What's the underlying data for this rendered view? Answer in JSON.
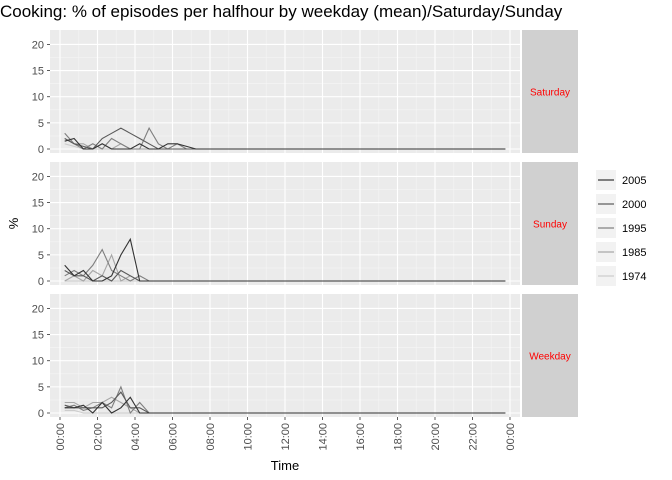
{
  "title": "Cooking: % of episodes per halfhour by weekday (mean)/Saturday/Sunday",
  "chart_data": {
    "type": "line",
    "title": "Cooking: % of episodes per halfhour by weekday (mean)/Saturday/Sunday",
    "xlabel": "Time",
    "ylabel": "%",
    "x_ticks": [
      "00:00",
      "02:00",
      "04:00",
      "06:00",
      "08:00",
      "10:00",
      "12:00",
      "14:00",
      "16:00",
      "18:00",
      "20:00",
      "22:00",
      "00:00"
    ],
    "y_ticks": [
      0,
      5,
      10,
      15,
      20
    ],
    "ylim": [
      0,
      22
    ],
    "x_unit": "half-hour slots from 00:00 (48 per day)",
    "legend_position": "right",
    "grid": true,
    "panels": [
      {
        "label": "Saturday",
        "series": [
          {
            "name": "2005",
            "color": "#333333",
            "values": [
              1.5,
              2,
              0,
              0,
              1,
              0,
              0,
              0,
              1,
              0,
              0,
              1,
              1,
              0.5,
              0,
              0,
              0,
              0,
              0,
              0,
              0,
              0,
              0,
              0,
              0,
              0,
              0,
              0,
              0,
              0,
              0,
              0,
              0,
              0,
              0,
              0,
              0,
              0,
              0,
              0,
              0,
              0,
              0,
              0,
              0,
              0,
              0,
              0
            ]
          },
          {
            "name": "2000",
            "color": "#595959",
            "values": [
              2,
              1,
              0.5,
              0,
              2,
              3,
              4,
              3,
              2,
              1,
              0,
              0,
              0,
              0,
              0,
              0,
              0,
              0,
              0,
              0,
              0,
              0,
              0,
              0,
              0,
              0,
              0,
              0,
              0,
              0,
              0,
              0,
              0,
              0,
              0,
              0,
              0,
              0,
              0,
              0,
              0,
              0,
              0,
              0,
              0,
              0,
              0,
              0
            ]
          },
          {
            "name": "1995",
            "color": "#7f7f7f",
            "values": [
              3,
              1,
              0,
              1,
              0,
              2,
              1,
              0,
              0,
              4,
              1,
              0,
              1,
              0,
              0,
              0,
              0,
              0,
              0,
              0,
              0,
              0,
              0,
              0,
              0,
              0,
              0,
              0,
              0,
              0,
              0,
              0,
              0,
              0,
              0,
              0,
              0,
              0,
              0,
              0,
              0,
              0,
              0,
              0,
              0,
              0,
              0,
              0
            ]
          },
          {
            "name": "1985",
            "color": "#a6a6a6",
            "values": [
              2,
              1,
              1,
              0,
              1,
              0,
              1,
              0,
              0,
              0,
              0,
              0,
              0,
              0,
              0,
              0,
              0,
              0,
              0,
              0,
              0,
              0,
              0,
              0,
              0,
              0,
              0,
              0,
              0,
              0,
              0,
              0,
              0,
              0,
              0,
              0,
              0,
              0,
              0,
              0,
              0,
              0,
              0,
              0,
              0,
              0,
              0,
              0
            ]
          },
          {
            "name": "1974",
            "color": "#cccccc",
            "values": [
              1,
              0.5,
              0,
              0,
              0,
              0,
              0,
              0,
              0,
              0,
              0,
              0,
              0,
              0,
              0,
              0,
              0,
              0,
              0,
              0,
              0,
              0,
              0,
              0,
              0,
              0,
              0,
              0,
              0,
              0,
              0,
              0,
              0,
              0,
              0,
              0,
              0,
              0,
              0,
              0,
              0,
              0,
              0,
              0,
              0,
              0,
              0,
              0
            ]
          }
        ]
      },
      {
        "label": "Sunday",
        "series": [
          {
            "name": "2005",
            "color": "#333333",
            "values": [
              3,
              1,
              2,
              0,
              0,
              1,
              5,
              8,
              0,
              0,
              0,
              0,
              0,
              0,
              0,
              0,
              0,
              0,
              0,
              0,
              0,
              0,
              0,
              0,
              0,
              0,
              0,
              0,
              0,
              0,
              0,
              0,
              0,
              0,
              0,
              0,
              0,
              0,
              0,
              0,
              0,
              0,
              0,
              0,
              0,
              0,
              0,
              0
            ]
          },
          {
            "name": "2000",
            "color": "#595959",
            "values": [
              2,
              1,
              1,
              0,
              1,
              0,
              2,
              1,
              0,
              0,
              0,
              0,
              0,
              0,
              0,
              0,
              0,
              0,
              0,
              0,
              0,
              0,
              0,
              0,
              0,
              0,
              0,
              0,
              0,
              0,
              0,
              0,
              0,
              0,
              0,
              0,
              0,
              0,
              0,
              0,
              0,
              0,
              0,
              0,
              0,
              0,
              0,
              0
            ]
          },
          {
            "name": "1995",
            "color": "#7f7f7f",
            "values": [
              1,
              2,
              1,
              3,
              6,
              2,
              1,
              0,
              1,
              0,
              0,
              0,
              0,
              0,
              0,
              0,
              0,
              0,
              0,
              0,
              0,
              0,
              0,
              0,
              0,
              0,
              0,
              0,
              0,
              0,
              0,
              0,
              0,
              0,
              0,
              0,
              0,
              0,
              0,
              0,
              0,
              0,
              0,
              0,
              0,
              0,
              0,
              0
            ]
          },
          {
            "name": "1985",
            "color": "#a6a6a6",
            "values": [
              0,
              1,
              0,
              2,
              1,
              5,
              0,
              1,
              0,
              0,
              0,
              0,
              0,
              0,
              0,
              0,
              0,
              0,
              0,
              0,
              0,
              0,
              0,
              0,
              0,
              0,
              0,
              0,
              0,
              0,
              0,
              0,
              0,
              0,
              0,
              0,
              0,
              0,
              0,
              0,
              0,
              0,
              0,
              0,
              0,
              0,
              0,
              0
            ]
          },
          {
            "name": "1974",
            "color": "#cccccc",
            "values": [
              0,
              0,
              0,
              0,
              0,
              0,
              0,
              0,
              0,
              0,
              0,
              0,
              0,
              0,
              0,
              0,
              0,
              0,
              0,
              0,
              0,
              0,
              0,
              0,
              0,
              0,
              0,
              0,
              0,
              0,
              0,
              0,
              0,
              0,
              0,
              0,
              0,
              0,
              0,
              0,
              0,
              0,
              0,
              0,
              0,
              0,
              0,
              0
            ]
          }
        ]
      },
      {
        "label": "Weekday",
        "series": [
          {
            "name": "2005",
            "color": "#333333",
            "values": [
              1,
              1,
              1.5,
              0,
              2,
              0,
              1,
              3,
              0,
              0,
              0,
              0,
              0,
              0,
              0,
              0,
              0,
              0,
              0,
              0,
              0,
              0,
              0,
              0,
              0,
              0,
              0,
              0,
              0,
              0,
              0,
              0,
              0,
              0,
              0,
              0,
              0,
              0,
              0,
              0,
              0,
              0,
              0,
              0,
              0,
              0,
              0,
              0
            ]
          },
          {
            "name": "2000",
            "color": "#595959",
            "values": [
              1.5,
              1,
              1,
              1,
              1,
              2,
              4,
              1,
              1,
              0,
              0,
              0,
              0,
              0,
              0,
              0,
              0,
              0,
              0,
              0,
              0,
              0,
              0,
              0,
              0,
              0,
              0,
              0,
              0,
              0,
              0,
              0,
              0,
              0,
              0,
              0,
              0,
              0,
              0,
              0,
              0,
              0,
              0,
              0,
              0,
              0,
              0,
              0
            ]
          },
          {
            "name": "1995",
            "color": "#7f7f7f",
            "values": [
              1,
              1.5,
              0.5,
              1,
              2,
              1,
              5,
              0,
              2,
              0,
              0,
              0,
              0,
              0,
              0,
              0,
              0,
              0,
              0,
              0,
              0,
              0,
              0,
              0,
              0,
              0,
              0,
              0,
              0,
              0,
              0,
              0,
              0,
              0,
              0,
              0,
              0,
              0,
              0,
              0,
              0,
              0,
              0,
              0,
              0,
              0,
              0,
              0
            ]
          },
          {
            "name": "1985",
            "color": "#a6a6a6",
            "values": [
              2,
              2,
              1,
              2,
              2,
              3,
              2,
              1,
              0,
              0,
              0,
              0,
              0,
              0,
              0,
              0,
              0,
              0,
              0,
              0,
              0,
              0,
              0,
              0,
              0,
              0,
              0,
              0,
              0,
              0,
              0,
              0,
              0,
              0,
              0,
              0,
              0,
              0,
              0,
              0,
              0,
              0,
              0,
              0,
              0,
              0,
              0,
              0
            ]
          },
          {
            "name": "1974",
            "color": "#cccccc",
            "values": [
              0.5,
              0.5,
              0,
              0,
              0,
              0,
              0,
              0,
              0,
              0,
              0,
              0,
              0,
              0,
              0,
              0,
              0,
              0,
              0,
              0,
              0,
              0,
              0,
              0,
              0,
              0,
              0,
              0,
              0,
              0,
              0,
              0,
              0,
              0,
              0,
              0,
              0,
              0,
              0,
              0,
              0,
              0,
              0,
              0,
              0,
              0,
              0,
              0
            ]
          }
        ]
      }
    ]
  }
}
